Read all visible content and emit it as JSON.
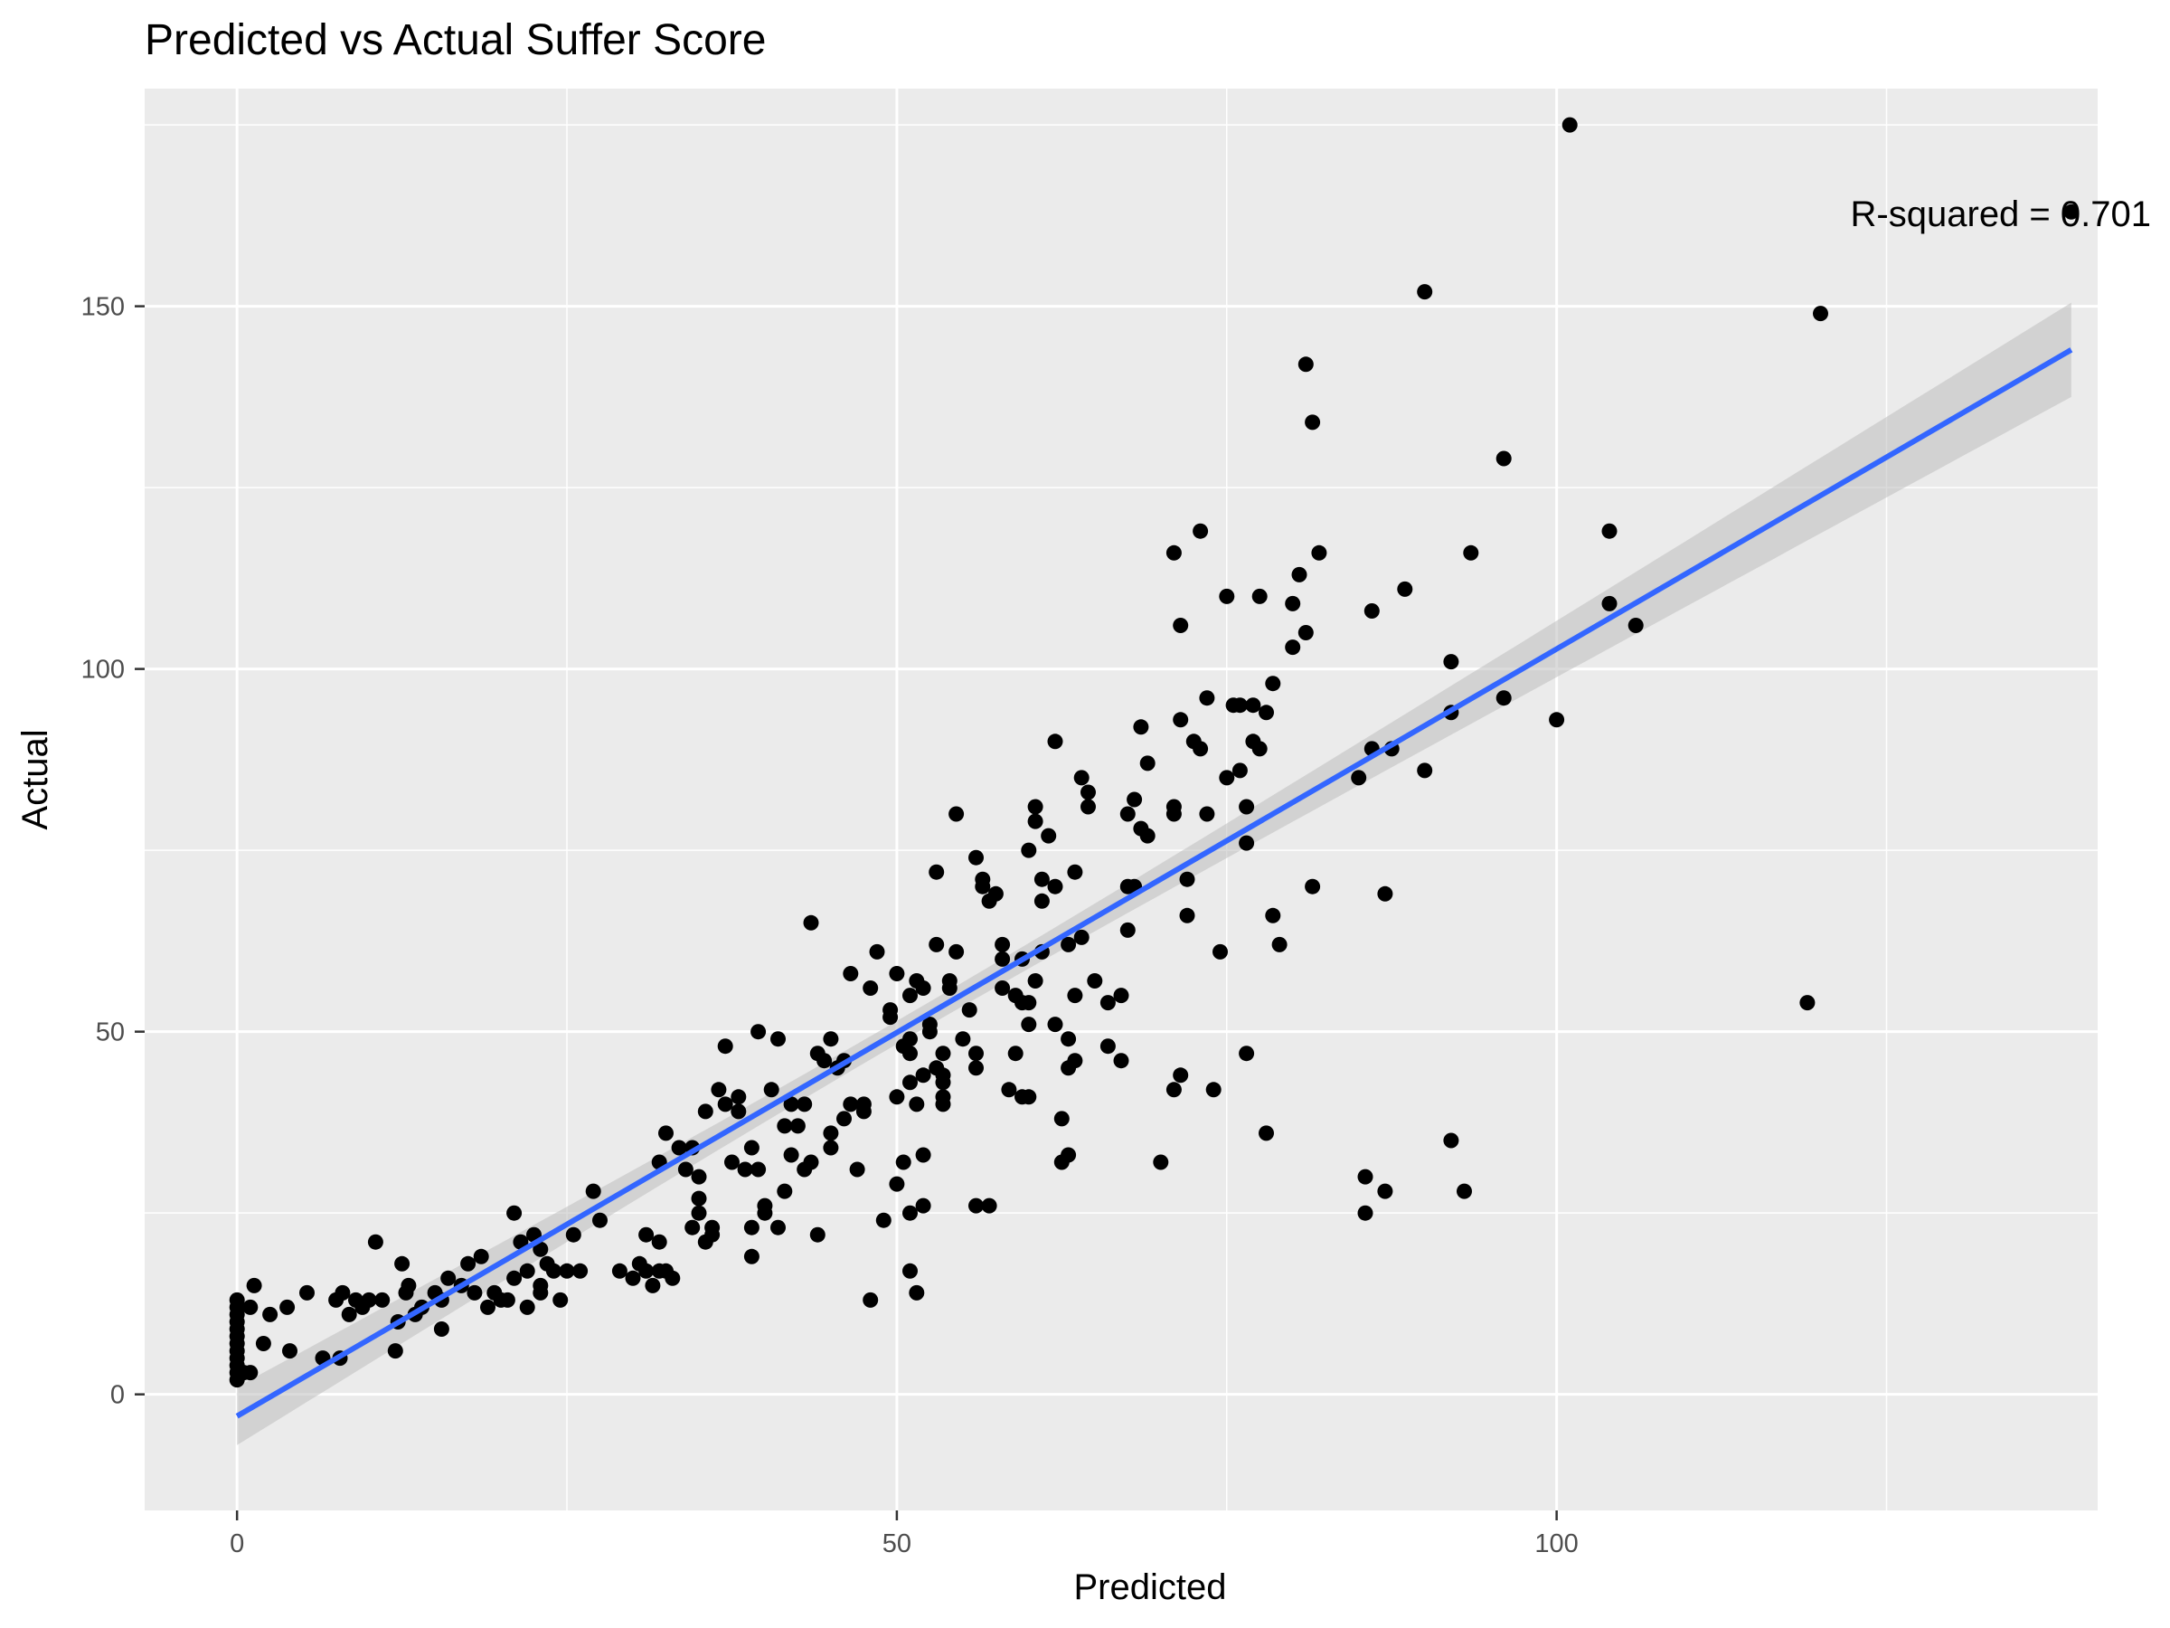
{
  "chart_data": {
    "type": "scatter",
    "title": "Predicted vs Actual Suffer Score",
    "xlabel": "Predicted",
    "ylabel": "Actual",
    "xlim": [
      -7,
      141
    ],
    "ylim": [
      -16,
      180
    ],
    "x_ticks": [
      0,
      50,
      100
    ],
    "y_ticks": [
      0,
      50,
      100,
      150
    ],
    "grid": true,
    "annotation": {
      "text": "R-squared = 0.701",
      "x": 141,
      "y": 165
    },
    "fit_line": {
      "method": "lm",
      "x": [
        0,
        139
      ],
      "y": [
        -3,
        144
      ],
      "band": [
        [
          -7,
          1
        ],
        [
          137,
          150
        ]
      ]
    },
    "colors": {
      "points": "#000000",
      "fit": "#3366FF",
      "band": "#BEBEBE",
      "panel": "#EBEBEB",
      "grid": "#FFFFFF"
    },
    "series": [
      {
        "points": [
          [
            0,
            2
          ],
          [
            0,
            3
          ],
          [
            0,
            4
          ],
          [
            0,
            5
          ],
          [
            0,
            6
          ],
          [
            0,
            7
          ],
          [
            0,
            8
          ],
          [
            0,
            9
          ],
          [
            0,
            10
          ],
          [
            0,
            11
          ],
          [
            0,
            12
          ],
          [
            0,
            13
          ],
          [
            0.5,
            3
          ],
          [
            1,
            3
          ],
          [
            1,
            12
          ],
          [
            1.3,
            15
          ],
          [
            2,
            7
          ],
          [
            2.5,
            11
          ],
          [
            3.8,
            12
          ],
          [
            4,
            6
          ],
          [
            5.3,
            14
          ],
          [
            6.5,
            5
          ],
          [
            7.5,
            13
          ],
          [
            7.8,
            5
          ],
          [
            8,
            14
          ],
          [
            8.5,
            11
          ],
          [
            9,
            13
          ],
          [
            9.5,
            12
          ],
          [
            10,
            13
          ],
          [
            10.5,
            21
          ],
          [
            11,
            13
          ],
          [
            12,
            6
          ],
          [
            12.2,
            10
          ],
          [
            12.5,
            18
          ],
          [
            12.8,
            14
          ],
          [
            13,
            15
          ],
          [
            13.5,
            11
          ],
          [
            14,
            12
          ],
          [
            15,
            14
          ],
          [
            15.5,
            13
          ],
          [
            15.5,
            9
          ],
          [
            16,
            16
          ],
          [
            17,
            15
          ],
          [
            17.5,
            18
          ],
          [
            18,
            14
          ],
          [
            18.5,
            19
          ],
          [
            19,
            12
          ],
          [
            19.5,
            14
          ],
          [
            20,
            13
          ],
          [
            20.5,
            13
          ],
          [
            21,
            16
          ],
          [
            21,
            25
          ],
          [
            21.5,
            21
          ],
          [
            22,
            17
          ],
          [
            22,
            12
          ],
          [
            22.5,
            22
          ],
          [
            23,
            14
          ],
          [
            23,
            15
          ],
          [
            23,
            20
          ],
          [
            23.5,
            18
          ],
          [
            24,
            17
          ],
          [
            24.5,
            13
          ],
          [
            25,
            17
          ],
          [
            25.5,
            22
          ],
          [
            26,
            17
          ],
          [
            27,
            28
          ],
          [
            27.5,
            24
          ],
          [
            29,
            17
          ],
          [
            30,
            16
          ],
          [
            30.5,
            18
          ],
          [
            31,
            17
          ],
          [
            31.5,
            15
          ],
          [
            32,
            17
          ],
          [
            32.5,
            17
          ],
          [
            31,
            22
          ],
          [
            32,
            21
          ],
          [
            32,
            32
          ],
          [
            32.5,
            36
          ],
          [
            33,
            16
          ],
          [
            33.5,
            34
          ],
          [
            34,
            31
          ],
          [
            34.5,
            34
          ],
          [
            34.5,
            23
          ],
          [
            35,
            25
          ],
          [
            35,
            27
          ],
          [
            35,
            30
          ],
          [
            35.5,
            21
          ],
          [
            35.5,
            39
          ],
          [
            36,
            22
          ],
          [
            36,
            23
          ],
          [
            36.5,
            42
          ],
          [
            37,
            48
          ],
          [
            37,
            40
          ],
          [
            37.5,
            32
          ],
          [
            38,
            39
          ],
          [
            38,
            41
          ],
          [
            38.5,
            31
          ],
          [
            39,
            34
          ],
          [
            39,
            19
          ],
          [
            39,
            23
          ],
          [
            39.5,
            50
          ],
          [
            39.5,
            31
          ],
          [
            40,
            25
          ],
          [
            40,
            26
          ],
          [
            40.5,
            42
          ],
          [
            41,
            23
          ],
          [
            41,
            49
          ],
          [
            41.5,
            37
          ],
          [
            41.5,
            28
          ],
          [
            42,
            33
          ],
          [
            42,
            40
          ],
          [
            42.5,
            37
          ],
          [
            43,
            31
          ],
          [
            43,
            40
          ],
          [
            43.5,
            32
          ],
          [
            43.5,
            65
          ],
          [
            44,
            47
          ],
          [
            44,
            22
          ],
          [
            44.5,
            46
          ],
          [
            45,
            36
          ],
          [
            45,
            34
          ],
          [
            45,
            49
          ],
          [
            45.5,
            45
          ],
          [
            46,
            46
          ],
          [
            46,
            38
          ],
          [
            46.5,
            40
          ],
          [
            46.5,
            58
          ],
          [
            47,
            31
          ],
          [
            47.5,
            40
          ],
          [
            47.5,
            39
          ],
          [
            48,
            56
          ],
          [
            48,
            13
          ],
          [
            48.5,
            61
          ],
          [
            49,
            24
          ],
          [
            49.5,
            53
          ],
          [
            49.5,
            52
          ],
          [
            50,
            58
          ],
          [
            50,
            41
          ],
          [
            50,
            29
          ],
          [
            50.5,
            48
          ],
          [
            50.5,
            32
          ],
          [
            51,
            47
          ],
          [
            51,
            43
          ],
          [
            51,
            25
          ],
          [
            51,
            17
          ],
          [
            51,
            49
          ],
          [
            51,
            55
          ],
          [
            51.5,
            40
          ],
          [
            51.5,
            57
          ],
          [
            51.5,
            14
          ],
          [
            52,
            44
          ],
          [
            52,
            26
          ],
          [
            52,
            33
          ],
          [
            52,
            56
          ],
          [
            52.5,
            50
          ],
          [
            52.5,
            51
          ],
          [
            53,
            62
          ],
          [
            53,
            72
          ],
          [
            53,
            45
          ],
          [
            53.5,
            47
          ],
          [
            53.5,
            44
          ],
          [
            53.5,
            43
          ],
          [
            53.5,
            41
          ],
          [
            53.5,
            40
          ],
          [
            54,
            56
          ],
          [
            54,
            57
          ],
          [
            54.5,
            61
          ],
          [
            54.5,
            80
          ],
          [
            55,
            49
          ],
          [
            55.5,
            53
          ],
          [
            56,
            74
          ],
          [
            56,
            45
          ],
          [
            56,
            47
          ],
          [
            56,
            26
          ],
          [
            56.5,
            71
          ],
          [
            56.5,
            70
          ],
          [
            57,
            26
          ],
          [
            57,
            68
          ],
          [
            57.5,
            69
          ],
          [
            58,
            60
          ],
          [
            58,
            62
          ],
          [
            58,
            56
          ],
          [
            58.5,
            42
          ],
          [
            59,
            47
          ],
          [
            59,
            55
          ],
          [
            59.5,
            54
          ],
          [
            59.5,
            41
          ],
          [
            59.5,
            60
          ],
          [
            60,
            51
          ],
          [
            60,
            41
          ],
          [
            60,
            54
          ],
          [
            60,
            75
          ],
          [
            60.5,
            81
          ],
          [
            60.5,
            79
          ],
          [
            60.5,
            57
          ],
          [
            61,
            68
          ],
          [
            61,
            71
          ],
          [
            61,
            61
          ],
          [
            61.5,
            77
          ],
          [
            62,
            90
          ],
          [
            62,
            70
          ],
          [
            62,
            51
          ],
          [
            62.5,
            38
          ],
          [
            62.5,
            32
          ],
          [
            63,
            33
          ],
          [
            63,
            45
          ],
          [
            63,
            49
          ],
          [
            63,
            62
          ],
          [
            63.5,
            72
          ],
          [
            63.5,
            55
          ],
          [
            63.5,
            46
          ],
          [
            64,
            85
          ],
          [
            64,
            63
          ],
          [
            64.5,
            83
          ],
          [
            64.5,
            81
          ],
          [
            65,
            57
          ],
          [
            66,
            54
          ],
          [
            66,
            48
          ],
          [
            67,
            55
          ],
          [
            67,
            46
          ],
          [
            67.5,
            70
          ],
          [
            67.5,
            80
          ],
          [
            67.5,
            64
          ],
          [
            68,
            70
          ],
          [
            68,
            82
          ],
          [
            68.5,
            92
          ],
          [
            68.5,
            78
          ],
          [
            69,
            77
          ],
          [
            69,
            87
          ],
          [
            70,
            32
          ],
          [
            71,
            116
          ],
          [
            71,
            80
          ],
          [
            71,
            81
          ],
          [
            71,
            42
          ],
          [
            71.5,
            44
          ],
          [
            71.5,
            93
          ],
          [
            71.5,
            106
          ],
          [
            72,
            66
          ],
          [
            72,
            71
          ],
          [
            72.5,
            90
          ],
          [
            73,
            89
          ],
          [
            73,
            119
          ],
          [
            73.5,
            80
          ],
          [
            73.5,
            96
          ],
          [
            74,
            42
          ],
          [
            74.5,
            61
          ],
          [
            75,
            110
          ],
          [
            75,
            85
          ],
          [
            75.5,
            95
          ],
          [
            76,
            95
          ],
          [
            76,
            86
          ],
          [
            76.5,
            76
          ],
          [
            76.5,
            81
          ],
          [
            76.5,
            47
          ],
          [
            77,
            90
          ],
          [
            77,
            95
          ],
          [
            77.5,
            89
          ],
          [
            77.5,
            110
          ],
          [
            78,
            94
          ],
          [
            78,
            36
          ],
          [
            78.5,
            98
          ],
          [
            78.5,
            66
          ],
          [
            79,
            62
          ],
          [
            80,
            109
          ],
          [
            80,
            103
          ],
          [
            80.5,
            113
          ],
          [
            81,
            142
          ],
          [
            81,
            105
          ],
          [
            81.5,
            134
          ],
          [
            81.5,
            70
          ],
          [
            82,
            116
          ],
          [
            85,
            85
          ],
          [
            85.5,
            30
          ],
          [
            85.5,
            25
          ],
          [
            86,
            89
          ],
          [
            86,
            108
          ],
          [
            87,
            69
          ],
          [
            87,
            28
          ],
          [
            87.5,
            89
          ],
          [
            88.5,
            111
          ],
          [
            90,
            152
          ],
          [
            90,
            86
          ],
          [
            92,
            101
          ],
          [
            92,
            94
          ],
          [
            92,
            35
          ],
          [
            93,
            28
          ],
          [
            93.5,
            116
          ],
          [
            96,
            129
          ],
          [
            96,
            96
          ],
          [
            100,
            93
          ],
          [
            101,
            175
          ],
          [
            104,
            109
          ],
          [
            104,
            119
          ],
          [
            106,
            106
          ],
          [
            119,
            54
          ],
          [
            120,
            149
          ],
          [
            139,
            163
          ]
        ]
      }
    ]
  }
}
